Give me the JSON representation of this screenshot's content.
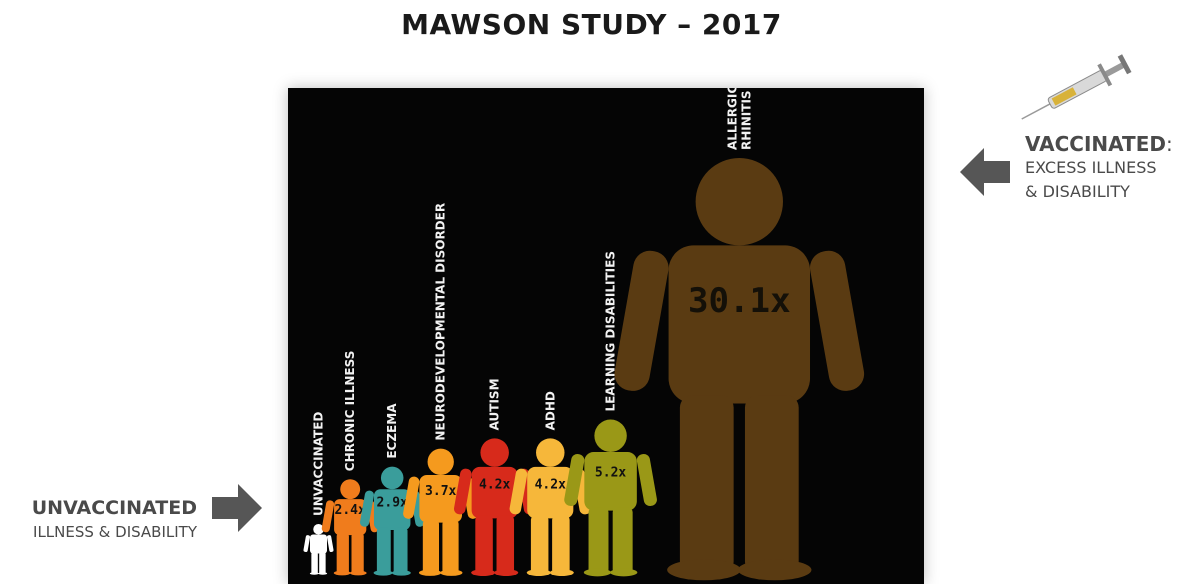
{
  "title": "MAWSON STUDY – 2017",
  "vaccinated_note": {
    "title": "VACCINATED",
    "colon": ":",
    "line1": "EXCESS ILLNESS",
    "line2": "& DISABILITY"
  },
  "unvaccinated_note": {
    "title": "UNVACCINATED",
    "line1": "ILLNESS & DISABILITY"
  },
  "icons": {
    "syringe": "syringe-icon",
    "arrow_left": "arrow-left-icon",
    "arrow_right": "arrow-right-icon"
  },
  "chart_data": {
    "type": "bar",
    "categories": [
      "UNVACCINATED",
      "CHRONIC ILLNESS",
      "ECZEMA",
      "NEURODEVELOPMENTAL DISORDER",
      "AUTISM",
      "ADHD",
      "LEARNING DISABILITIES",
      "ALLERGIC RHINITIS"
    ],
    "values": [
      1.0,
      2.4,
      2.9,
      3.7,
      4.2,
      4.2,
      5.2,
      30.1
    ],
    "data_labels": [
      "",
      "2.4x",
      "2.9x",
      "3.7x",
      "4.2x",
      "4.2x",
      "5.2x",
      "30.1x"
    ],
    "colors": [
      "#ffffff",
      "#f07c1c",
      "#3a9d9b",
      "#f59a1e",
      "#d72a1b",
      "#f6b73a",
      "#9a9817",
      "#5a3b12"
    ],
    "title": "MAWSON STUDY – 2017",
    "xlabel": "",
    "ylabel": "",
    "grid": false,
    "legend": "none"
  }
}
